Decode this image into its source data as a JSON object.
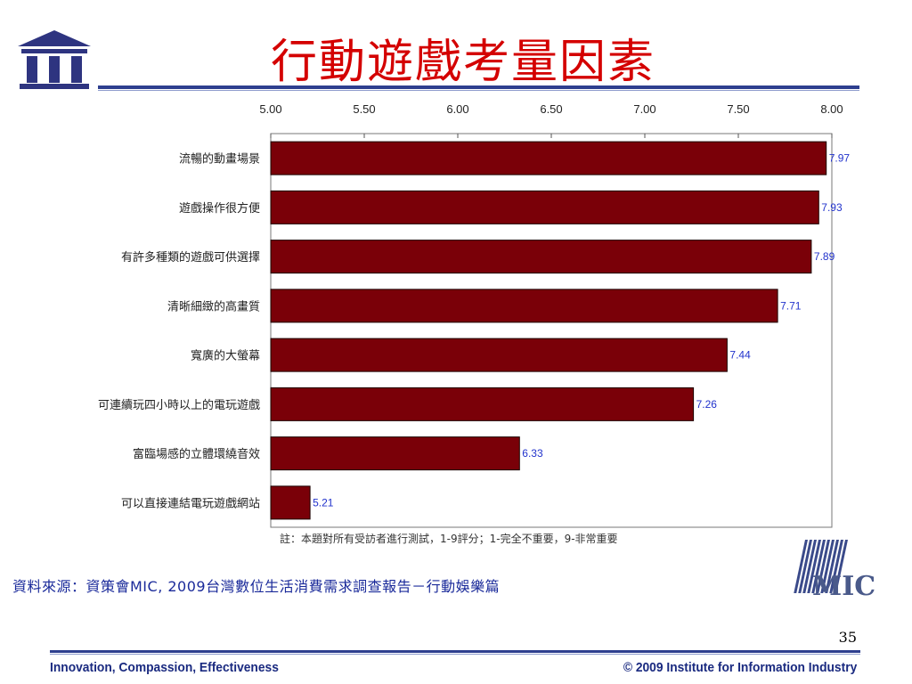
{
  "slide": {
    "title": "行動遊戲考量因素",
    "note": "註：本題對所有受訪者進行測試，1-9評分；1-完全不重要，9-非常重要",
    "source": "資料來源：資策會MIC, 2009台灣數位生活消費需求調查報告－行動娛樂篇",
    "page_number": "35",
    "footer_left": "Innovation, Compassion, Effectiveness",
    "footer_right": "© 2009 Institute for Information Industry",
    "mic_logo_text": "MIC"
  },
  "colors": {
    "title": "#d40000",
    "bar": "#7a0008",
    "value_label": "#2233cc",
    "rule": "#2e3f8f"
  },
  "chart_data": {
    "type": "bar",
    "orientation": "horizontal",
    "title": "",
    "xlabel": "",
    "ylabel": "",
    "xlim": [
      5.0,
      8.0
    ],
    "x_ticks": [
      "5.00",
      "5.50",
      "6.00",
      "6.50",
      "7.00",
      "7.50",
      "8.00"
    ],
    "x_axis_position": "top",
    "grid": false,
    "categories": [
      "流暢的動畫場景",
      "遊戲操作很方便",
      "有許多種類的遊戲可供選擇",
      "清晰細緻的高畫質",
      "寬廣的大螢幕",
      "可連續玩四小時以上的電玩遊戲",
      "富臨場感的立體環繞音效",
      "可以直接連結電玩遊戲網站"
    ],
    "values": [
      7.97,
      7.93,
      7.89,
      7.71,
      7.44,
      7.26,
      6.33,
      5.21
    ],
    "value_labels": [
      "7.97",
      "7.93",
      "7.89",
      "7.71",
      "7.44",
      "7.26",
      "6.33",
      "5.21"
    ]
  }
}
